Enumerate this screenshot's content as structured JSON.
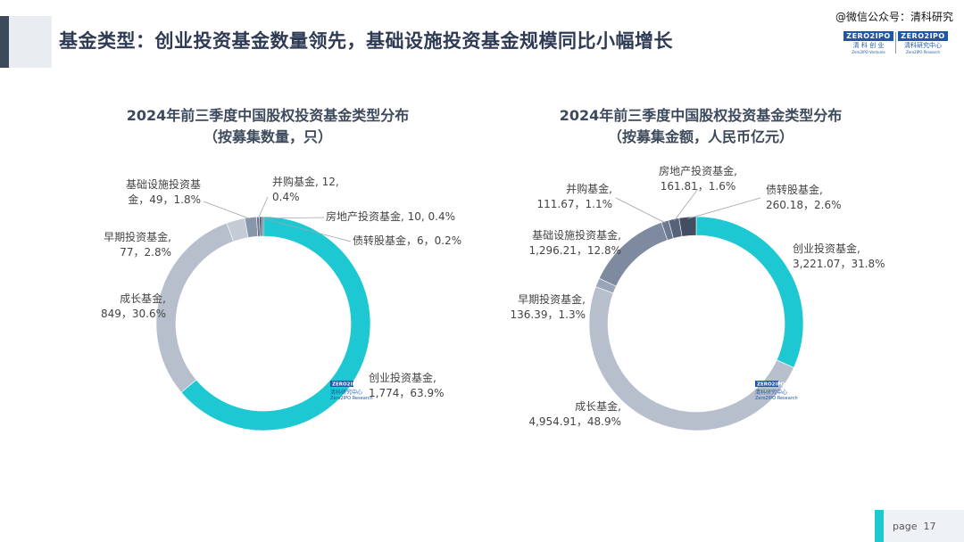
{
  "header": {
    "title": "基金类型：创业投资基金数量领先，基础设施投资基金规模同比小幅增长",
    "watermark": "@微信公众号：清科研究",
    "logos": [
      {
        "top": "ZERO2IPO",
        "cn": "清 科 创 业",
        "en": "Zero2IPO Ventures"
      },
      {
        "top": "ZERO2IPO",
        "cn": "清科研究中心",
        "en": "Zero2IPO Research"
      }
    ]
  },
  "charts": [
    {
      "title_line1": "2024年前三季度中国股权投资基金类型分布",
      "title_line2": "（按募集数量，只）"
    },
    {
      "title_line1": "2024年前三季度中国股权投资基金类型分布",
      "title_line2": "（按募集金额，人民币亿元）"
    }
  ],
  "chart_data": [
    {
      "type": "pie",
      "donut": true,
      "title": "2024年前三季度中国股权投资基金类型分布（按募集数量，只）",
      "slices": [
        {
          "name": "创业投资基金",
          "value": 1774,
          "percent": 63.9,
          "color": "#1ec8d2",
          "label_lines": [
            "创业投资基金,",
            "1,774，63.9%"
          ]
        },
        {
          "name": "成长基金",
          "value": 849,
          "percent": 30.6,
          "color": "#b8bfcc",
          "label_lines": [
            "成长基金,",
            "849，30.6%"
          ]
        },
        {
          "name": "早期投资基金",
          "value": 77,
          "percent": 2.8,
          "color": "#c5cbd5",
          "label_lines": [
            "早期投资基金,",
            "77，2.8%"
          ]
        },
        {
          "name": "基础设施投资基金",
          "value": 49,
          "percent": 1.8,
          "color": "#8896ab",
          "label_lines": [
            "基础设施投资基",
            "金，49，1.8%"
          ]
        },
        {
          "name": "并购基金",
          "value": 12,
          "percent": 0.4,
          "color": "#6a7890",
          "label_lines": [
            "并购基金, 12,",
            "0.4%"
          ]
        },
        {
          "name": "房地产投资基金",
          "value": 10,
          "percent": 0.4,
          "color": "#4d5a70",
          "label_lines": [
            "房地产投资基金, 10, 0.4%"
          ]
        },
        {
          "name": "债转股基金",
          "value": 6,
          "percent": 0.2,
          "color": "#3a4457",
          "label_lines": [
            "债转股基金，6，0.2%"
          ]
        }
      ],
      "watermark_logo": {
        "top": "ZERO2IPO",
        "cn": "清科研究中心",
        "en": "Zero2IPO Research"
      }
    },
    {
      "type": "pie",
      "donut": true,
      "title": "2024年前三季度中国股权投资基金类型分布（按募集金额，人民币亿元）",
      "slices": [
        {
          "name": "创业投资基金",
          "value": 3221.07,
          "percent": 31.8,
          "color": "#1ec8d2",
          "label_lines": [
            "创业投资基金,",
            "3,221.07，31.8%"
          ]
        },
        {
          "name": "成长基金",
          "value": 4954.91,
          "percent": 48.9,
          "color": "#b8bfcc",
          "label_lines": [
            "成长基金,",
            "4,954.91，48.9%"
          ]
        },
        {
          "name": "早期投资基金",
          "value": 136.39,
          "percent": 1.3,
          "color": "#9aa6b8",
          "label_lines": [
            "早期投资基金,",
            "136.39，1.3%"
          ]
        },
        {
          "name": "基础设施投资基金",
          "value": 1296.21,
          "percent": 12.8,
          "color": "#7d8aa0",
          "label_lines": [
            "基础设施投资基金,",
            "1,296.21，12.8%"
          ]
        },
        {
          "name": "并购基金",
          "value": 111.67,
          "percent": 1.1,
          "color": "#6a7890",
          "label_lines": [
            "并购基金,",
            "111.67，1.1%"
          ]
        },
        {
          "name": "房地产投资基金",
          "value": 161.81,
          "percent": 1.6,
          "color": "#55627a",
          "label_lines": [
            "房地产投资基金,",
            "161.81，1.6%"
          ]
        },
        {
          "name": "债转股基金",
          "value": 260.18,
          "percent": 2.6,
          "color": "#434e63",
          "label_lines": [
            "债转股基金,",
            "260.18，2.6%"
          ]
        }
      ],
      "watermark_logo": {
        "top": "ZERO2IPO",
        "cn": "清科研究中心",
        "en": "Zero2IPO Research"
      }
    }
  ],
  "footer": {
    "page_label": "page",
    "page_number": "17"
  }
}
